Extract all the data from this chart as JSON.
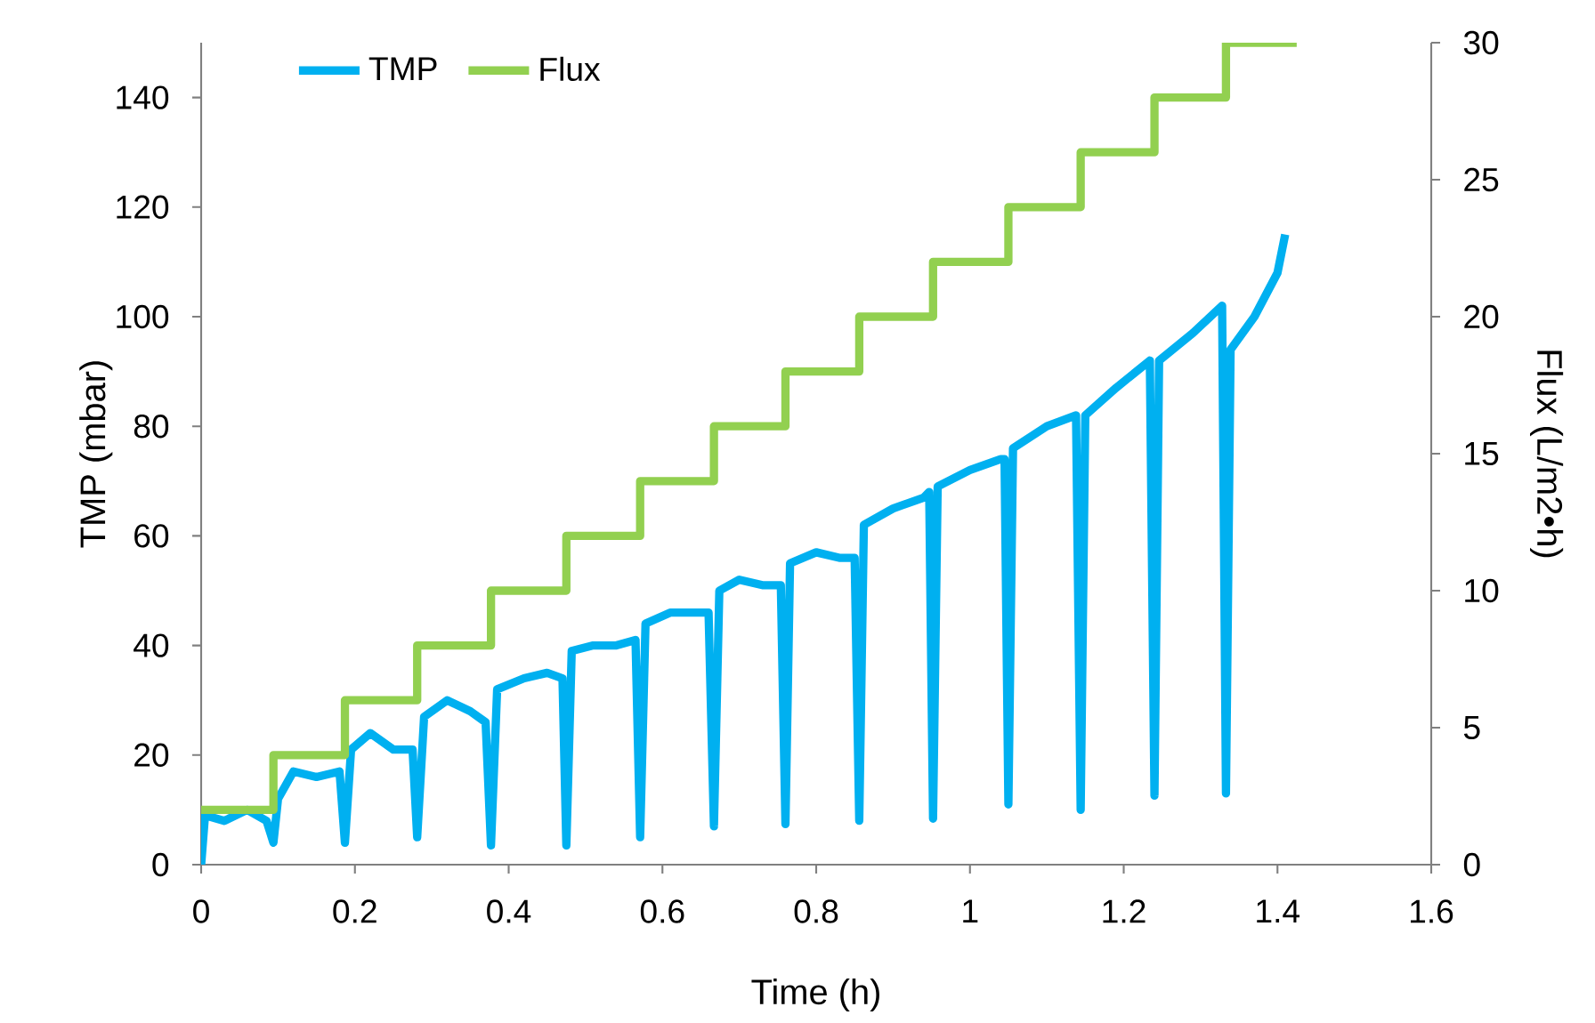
{
  "chart_data": {
    "type": "line",
    "xlabel": "Time (h)",
    "ylabel": "TMP (mbar)",
    "y2label": "Flux (L/m2•h)",
    "xlim": [
      0,
      1.6
    ],
    "xticks": [
      0,
      0.2,
      0.4,
      0.6,
      0.8,
      1,
      1.2,
      1.4,
      1.6
    ],
    "ylim": [
      0,
      150
    ],
    "yticks": [
      0,
      20,
      40,
      60,
      80,
      100,
      120,
      140
    ],
    "y2lim": [
      0,
      30
    ],
    "y2ticks": [
      0,
      5,
      10,
      15,
      20,
      25,
      30
    ],
    "legend": "top left",
    "grid": false,
    "marker": "none",
    "line_style": "solid",
    "series": [
      {
        "name": "TMP",
        "color": "#00b0f0",
        "x": [
          0,
          0.005,
          0.03,
          0.06,
          0.085,
          0.094,
          0.1,
          0.12,
          0.15,
          0.18,
          0.187,
          0.195,
          0.22,
          0.25,
          0.275,
          0.281,
          0.29,
          0.32,
          0.35,
          0.37,
          0.377,
          0.385,
          0.42,
          0.45,
          0.47,
          0.475,
          0.482,
          0.51,
          0.54,
          0.565,
          0.571,
          0.578,
          0.61,
          0.64,
          0.66,
          0.667,
          0.674,
          0.7,
          0.73,
          0.754,
          0.76,
          0.766,
          0.8,
          0.83,
          0.85,
          0.856,
          0.862,
          0.9,
          0.94,
          0.947,
          0.952,
          0.958,
          1.0,
          1.04,
          1.045,
          1.05,
          1.056,
          1.1,
          1.138,
          1.144,
          1.15,
          1.19,
          1.234,
          1.24,
          1.246,
          1.29,
          1.328,
          1.333,
          1.339,
          1.37,
          1.4,
          1.41
        ],
        "values": [
          0,
          9,
          8,
          10,
          8,
          4,
          12,
          17,
          16,
          17,
          4,
          21,
          24,
          21,
          21,
          5,
          27,
          30,
          28,
          26,
          3.5,
          32,
          34,
          35,
          34,
          3.5,
          39,
          40,
          40,
          41,
          5,
          44,
          46,
          46,
          46,
          7,
          50,
          52,
          51,
          51,
          7.4,
          55,
          57,
          56,
          56,
          8,
          62,
          65,
          67,
          68,
          8.4,
          69,
          72,
          74,
          74,
          11,
          76,
          80,
          82,
          10,
          82,
          87,
          92,
          12.6,
          92,
          97,
          102,
          13,
          94,
          100,
          108,
          115
        ]
      },
      {
        "name": "Flux",
        "type": "step",
        "axis": "y2",
        "color": "#92d050",
        "x": [
          0,
          0.094,
          0.187,
          0.281,
          0.377,
          0.475,
          0.571,
          0.667,
          0.76,
          0.856,
          0.952,
          1.05,
          1.144,
          1.24,
          1.333,
          1.425
        ],
        "values": [
          2,
          4,
          6,
          8,
          10,
          12,
          14,
          16,
          18,
          20,
          22,
          24,
          26,
          28,
          30,
          30
        ]
      }
    ]
  }
}
